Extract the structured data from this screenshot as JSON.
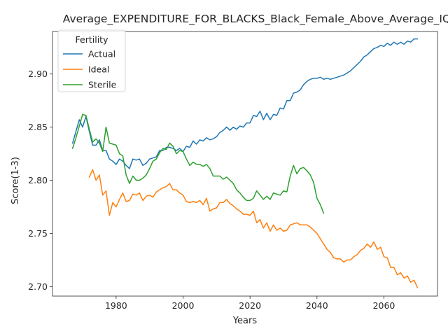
{
  "chart_data": {
    "type": "line",
    "title": "Average_EXPENDITURE_FOR_BLACKS_Black_Female_Above_Average_IQ",
    "xlabel": "Years",
    "ylabel": "Score(1-3)",
    "xlim": [
      1961,
      2076
    ],
    "ylim": [
      2.691,
      2.94
    ],
    "xticks": [
      1980,
      2000,
      2020,
      2040,
      2060
    ],
    "yticks": [
      2.7,
      2.75,
      2.8,
      2.85,
      2.9
    ],
    "xtick_labels": [
      "1980",
      "2000",
      "2020",
      "2040",
      "2060"
    ],
    "ytick_labels": [
      "2.70",
      "2.75",
      "2.80",
      "2.85",
      "2.90"
    ],
    "grid": false,
    "legend": {
      "title": "Fertility",
      "placement": "top-left"
    },
    "series": [
      {
        "name": "Actual",
        "color": "#1f77b4",
        "x": [
          1967,
          1968,
          1969,
          1970,
          1971,
          1972,
          1973,
          1974,
          1975,
          1976,
          1977,
          1978,
          1979,
          1980,
          1981,
          1982,
          1983,
          1984,
          1985,
          1986,
          1987,
          1988,
          1989,
          1990,
          1991,
          1992,
          1993,
          1994,
          1995,
          1996,
          1997,
          1998,
          1999,
          2000,
          2001,
          2002,
          2003,
          2004,
          2005,
          2006,
          2007,
          2008,
          2009,
          2010,
          2011,
          2012,
          2013,
          2014,
          2015,
          2016,
          2017,
          2018,
          2019,
          2020,
          2021,
          2022,
          2023,
          2024,
          2025,
          2026,
          2027,
          2028,
          2029,
          2030,
          2031,
          2032,
          2033,
          2034,
          2035,
          2036,
          2037,
          2038,
          2039,
          2040,
          2041,
          2042,
          2043,
          2044,
          2045,
          2046,
          2047,
          2048,
          2049,
          2050,
          2051,
          2052,
          2053,
          2054,
          2055,
          2056,
          2057,
          2058,
          2059,
          2060,
          2061,
          2062,
          2063,
          2064,
          2065,
          2066,
          2067,
          2068,
          2069,
          2070
        ],
        "values": [
          2.835,
          2.846,
          2.857,
          2.85,
          2.86,
          2.846,
          2.833,
          2.833,
          2.838,
          2.828,
          2.828,
          2.82,
          2.818,
          2.815,
          2.82,
          2.818,
          2.814,
          2.811,
          2.82,
          2.819,
          2.82,
          2.814,
          2.816,
          2.82,
          2.821,
          2.822,
          2.828,
          2.828,
          2.831,
          2.831,
          2.83,
          2.828,
          2.83,
          2.827,
          2.832,
          2.831,
          2.837,
          2.834,
          2.838,
          2.837,
          2.84,
          2.838,
          2.839,
          2.841,
          2.845,
          2.847,
          2.85,
          2.847,
          2.85,
          2.848,
          2.851,
          2.85,
          2.854,
          2.854,
          2.861,
          2.86,
          2.865,
          2.857,
          2.863,
          2.857,
          2.862,
          2.861,
          2.868,
          2.867,
          2.875,
          2.875,
          2.882,
          2.883,
          2.885,
          2.89,
          2.893,
          2.895,
          2.896,
          2.896,
          2.897,
          2.895,
          2.896,
          2.895,
          2.896,
          2.897,
          2.898,
          2.899,
          2.901,
          2.903,
          2.906,
          2.909,
          2.912,
          2.916,
          2.918,
          2.921,
          2.924,
          2.925,
          2.927,
          2.926,
          2.929,
          2.927,
          2.93,
          2.928,
          2.93,
          2.928,
          2.931,
          2.93,
          2.933,
          2.933
        ]
      },
      {
        "name": "Ideal",
        "color": "#ff7f0e",
        "x": [
          1972,
          1973,
          1974,
          1975,
          1976,
          1977,
          1978,
          1979,
          1980,
          1981,
          1982,
          1983,
          1984,
          1985,
          1986,
          1987,
          1988,
          1989,
          1990,
          1991,
          1992,
          1993,
          1994,
          1995,
          1996,
          1997,
          1998,
          1999,
          2000,
          2001,
          2002,
          2003,
          2004,
          2005,
          2006,
          2007,
          2008,
          2009,
          2010,
          2011,
          2012,
          2013,
          2014,
          2015,
          2016,
          2017,
          2018,
          2019,
          2020,
          2021,
          2022,
          2023,
          2024,
          2025,
          2026,
          2027,
          2028,
          2029,
          2030,
          2031,
          2032,
          2033,
          2034,
          2035,
          2036,
          2037,
          2038,
          2039,
          2040,
          2041,
          2042,
          2043,
          2044,
          2045,
          2046,
          2047,
          2048,
          2049,
          2050,
          2051,
          2052,
          2053,
          2054,
          2055,
          2056,
          2057,
          2058,
          2059,
          2060,
          2061,
          2062,
          2063,
          2064,
          2065,
          2066,
          2067,
          2068,
          2069,
          2070
        ],
        "values": [
          2.803,
          2.81,
          2.8,
          2.805,
          2.786,
          2.79,
          2.767,
          2.779,
          2.775,
          2.782,
          2.788,
          2.78,
          2.781,
          2.787,
          2.786,
          2.788,
          2.781,
          2.785,
          2.786,
          2.784,
          2.789,
          2.791,
          2.793,
          2.794,
          2.797,
          2.791,
          2.791,
          2.788,
          2.786,
          2.78,
          2.779,
          2.78,
          2.779,
          2.781,
          2.777,
          2.783,
          2.771,
          2.773,
          2.774,
          2.779,
          2.779,
          2.782,
          2.778,
          2.776,
          2.773,
          2.771,
          2.768,
          2.768,
          2.767,
          2.771,
          2.76,
          2.763,
          2.755,
          2.76,
          2.752,
          2.758,
          2.753,
          2.755,
          2.752,
          2.753,
          2.758,
          2.759,
          2.76,
          2.758,
          2.758,
          2.758,
          2.756,
          2.753,
          2.75,
          2.745,
          2.74,
          2.735,
          2.732,
          2.727,
          2.726,
          2.726,
          2.723,
          2.725,
          2.725,
          2.728,
          2.73,
          2.734,
          2.736,
          2.74,
          2.737,
          2.742,
          2.735,
          2.737,
          2.728,
          2.727,
          2.718,
          2.718,
          2.711,
          2.713,
          2.708,
          2.71,
          2.704,
          2.706,
          2.699
        ]
      },
      {
        "name": "Sterile",
        "color": "#2ca02c",
        "x": [
          1967,
          1968,
          1969,
          1970,
          1971,
          1972,
          1973,
          1974,
          1975,
          1976,
          1977,
          1978,
          1979,
          1980,
          1981,
          1982,
          1983,
          1984,
          1985,
          1986,
          1987,
          1988,
          1989,
          1990,
          1991,
          1992,
          1993,
          1994,
          1995,
          1996,
          1997,
          1998,
          1999,
          2000,
          2001,
          2002,
          2003,
          2004,
          2005,
          2006,
          2007,
          2008,
          2009,
          2010,
          2011,
          2012,
          2013,
          2014,
          2015,
          2016,
          2017,
          2018,
          2019,
          2020,
          2021,
          2022,
          2023,
          2024,
          2025,
          2026,
          2027,
          2028,
          2029,
          2030,
          2031,
          2032,
          2033,
          2034,
          2035,
          2036,
          2037,
          2038,
          2039,
          2040,
          2041,
          2042
        ],
        "values": [
          2.83,
          2.84,
          2.851,
          2.862,
          2.861,
          2.848,
          2.836,
          2.839,
          2.835,
          2.827,
          2.85,
          2.835,
          2.834,
          2.833,
          2.825,
          2.823,
          2.805,
          2.797,
          2.804,
          2.8,
          2.8,
          2.802,
          2.805,
          2.811,
          2.818,
          2.82,
          2.826,
          2.83,
          2.829,
          2.835,
          2.832,
          2.825,
          2.828,
          2.827,
          2.82,
          2.814,
          2.817,
          2.815,
          2.815,
          2.813,
          2.815,
          2.811,
          2.804,
          2.804,
          2.804,
          2.801,
          2.803,
          2.8,
          2.797,
          2.791,
          2.788,
          2.784,
          2.781,
          2.781,
          2.783,
          2.79,
          2.786,
          2.782,
          2.785,
          2.782,
          2.788,
          2.787,
          2.786,
          2.79,
          2.789,
          2.804,
          2.814,
          2.806,
          2.811,
          2.812,
          2.809,
          2.805,
          2.798,
          2.783,
          2.777,
          2.769
        ]
      }
    ]
  }
}
